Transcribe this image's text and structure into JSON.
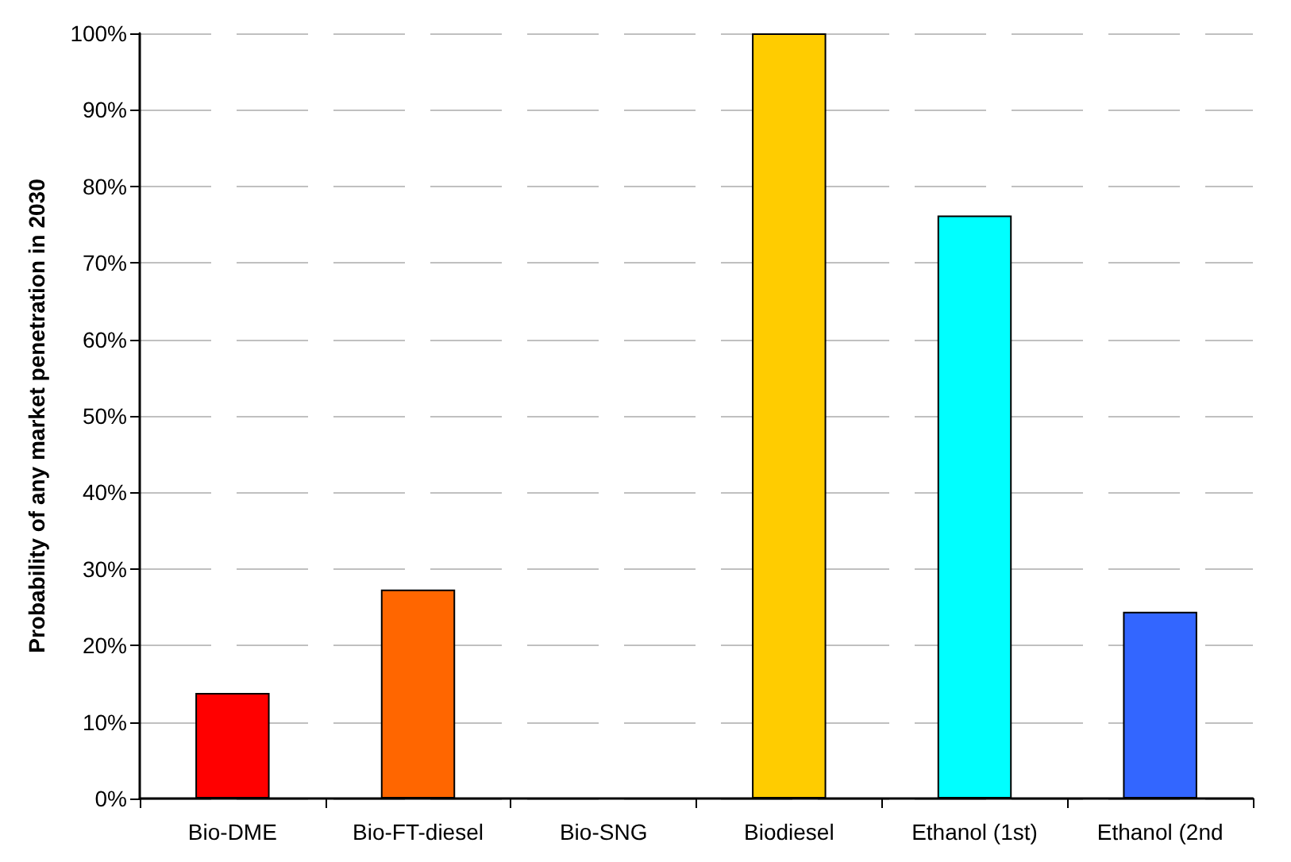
{
  "chart_data": {
    "type": "bar",
    "ylabel": "Probability of any market penetration in 2030",
    "categories": [
      "Bio-DME",
      "Bio-FT-diesel",
      "Bio-SNG",
      "Biodiesel",
      "Ethanol (1st)",
      "Ethanol (2nd"
    ],
    "values": [
      13.8,
      27.3,
      0,
      100,
      76.2,
      24.4
    ],
    "colors": [
      "#ff0000",
      "#ff6600",
      null,
      "#ffcc00",
      "#00ffff",
      "#3366ff"
    ],
    "ylim": [
      0,
      100
    ],
    "yticks": [
      {
        "value": 0,
        "label": "0%"
      },
      {
        "value": 10,
        "label": "10%"
      },
      {
        "value": 20,
        "label": "20%"
      },
      {
        "value": 30,
        "label": "30%"
      },
      {
        "value": 40,
        "label": "40%"
      },
      {
        "value": 50,
        "label": "50%"
      },
      {
        "value": 60,
        "label": "60%"
      },
      {
        "value": 70,
        "label": "70%"
      },
      {
        "value": 80,
        "label": "80%"
      },
      {
        "value": 90,
        "label": "90%"
      },
      {
        "value": 100,
        "label": "100%"
      }
    ],
    "grid": "y"
  }
}
